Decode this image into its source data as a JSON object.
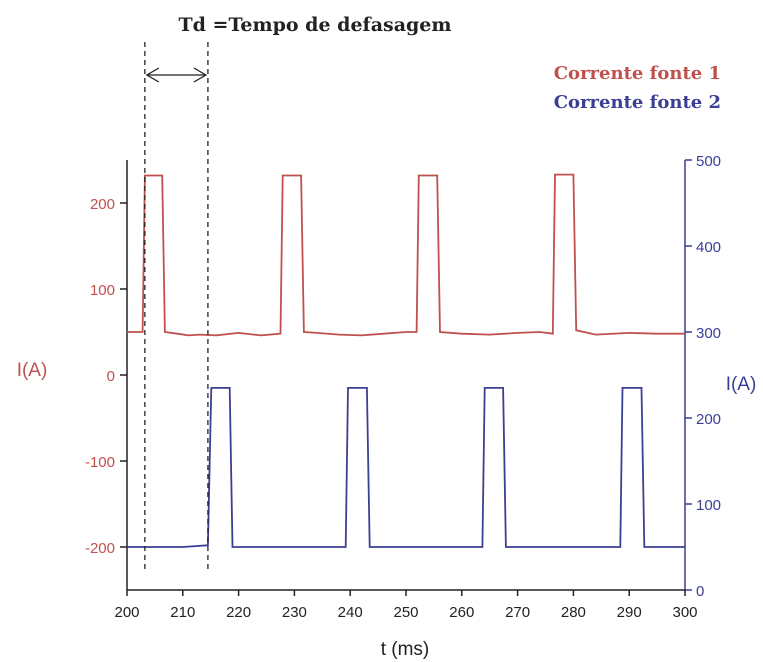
{
  "chart_data": {
    "type": "line",
    "annotation": "Td =Tempo de defasagem",
    "xlabel": "t (ms)",
    "ylabel_left": "I(A)",
    "ylabel_right": "I(A)",
    "xlim": [
      200,
      300
    ],
    "ylim_left": [
      -250,
      250
    ],
    "ylim_right": [
      0,
      500
    ],
    "x_ticks": [
      200,
      210,
      220,
      230,
      240,
      250,
      260,
      270,
      280,
      290,
      300
    ],
    "y_ticks_left": [
      200,
      100,
      0,
      -100,
      -200
    ],
    "y_ticks_right": [
      500,
      400,
      300,
      200,
      100,
      0
    ],
    "td_markers_x": [
      203.2,
      214.5
    ],
    "grid": false,
    "legend_position": "top-right",
    "series": [
      {
        "name": "Corrente fonte 1",
        "axis": "left",
        "color": "#c0504d",
        "x": [
          200,
          202.8,
          203.2,
          206.3,
          206.8,
          209,
          211,
          213,
          216,
          220,
          224,
          227.5,
          227.9,
          231.2,
          231.7,
          234,
          238,
          242,
          246,
          250,
          251.9,
          252.3,
          255.6,
          256.1,
          260,
          265,
          270,
          274,
          276.3,
          276.7,
          280,
          280.5,
          284,
          290,
          295,
          300
        ],
        "y": [
          50,
          50,
          232,
          232,
          50,
          48,
          46,
          47,
          46,
          49,
          46,
          48,
          232,
          232,
          50,
          49,
          47,
          46,
          48,
          50,
          50,
          232,
          232,
          50,
          48,
          47,
          49,
          50,
          48,
          233,
          233,
          52,
          47,
          49,
          48,
          48
        ]
      },
      {
        "name": "Corrente fonte 2",
        "axis": "left",
        "color": "#3b3f94",
        "x": [
          200,
          205,
          210,
          214.5,
          215.1,
          218.4,
          218.9,
          222,
          228,
          234,
          239.2,
          239.6,
          243,
          243.5,
          248,
          254,
          260,
          263.7,
          264.1,
          267.4,
          267.9,
          272,
          278,
          284,
          288.4,
          288.8,
          292.2,
          292.7,
          296,
          300
        ],
        "y": [
          -200,
          -200,
          -200,
          -198,
          -15,
          -15,
          -200,
          -200,
          -200,
          -200,
          -200,
          -15,
          -15,
          -200,
          -200,
          -200,
          -200,
          -200,
          -15,
          -15,
          -200,
          -200,
          -200,
          -200,
          -200,
          -15,
          -15,
          -200,
          -200,
          -200
        ]
      }
    ]
  }
}
